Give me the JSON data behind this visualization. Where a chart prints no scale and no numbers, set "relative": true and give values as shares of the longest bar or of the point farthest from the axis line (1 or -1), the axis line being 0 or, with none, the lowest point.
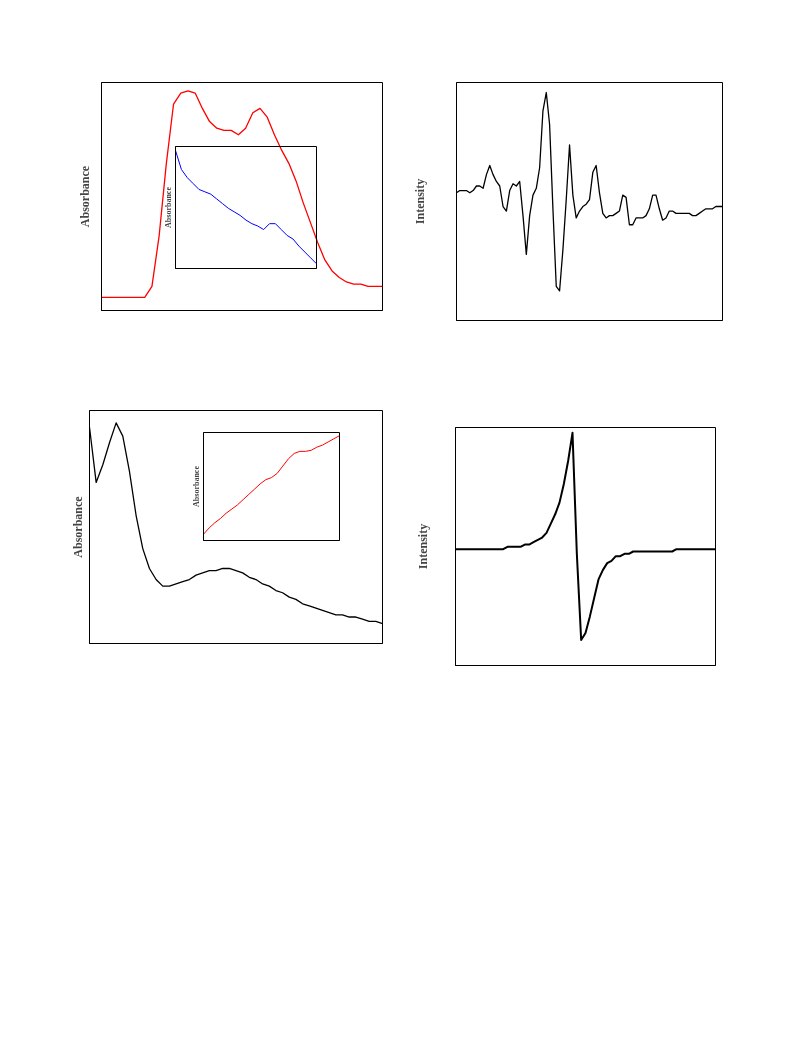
{
  "chart_data": [
    {
      "type": "line",
      "relative": true,
      "ylabel": "Absorbance",
      "categories": [
        null,
        null,
        null,
        null,
        null,
        null,
        null,
        null,
        null,
        null,
        null,
        null,
        null,
        null,
        null,
        null,
        null,
        null,
        null,
        null,
        null,
        null,
        null,
        null,
        null,
        null,
        null,
        null,
        null,
        null,
        null,
        null,
        null,
        null,
        null,
        null,
        null,
        null,
        null,
        null
      ],
      "series": [
        {
          "color": "#ff0000",
          "values": [
            0.06,
            0.06,
            0.06,
            0.06,
            0.06,
            0.06,
            0.06,
            0.11,
            0.34,
            0.67,
            0.94,
            0.99,
            1.0,
            0.99,
            0.92,
            0.86,
            0.83,
            0.82,
            0.82,
            0.8,
            0.83,
            0.9,
            0.92,
            0.88,
            0.8,
            0.73,
            0.67,
            0.59,
            0.49,
            0.4,
            0.31,
            0.23,
            0.18,
            0.15,
            0.13,
            0.12,
            0.12,
            0.11,
            0.11,
            0.11
          ]
        }
      ]
    },
    {
      "type": "line",
      "relative": true,
      "ylabel": "Absorbance",
      "categories": [
        null,
        null,
        null,
        null,
        null,
        null,
        null,
        null,
        null,
        null,
        null,
        null,
        null,
        null,
        null,
        null,
        null,
        null,
        null,
        null,
        null,
        null,
        null,
        null,
        null
      ],
      "series": [
        {
          "color": "#0000ff",
          "values": [
            1.0,
            0.84,
            0.77,
            0.72,
            0.67,
            0.65,
            0.63,
            0.59,
            0.55,
            0.51,
            0.48,
            0.45,
            0.41,
            0.38,
            0.36,
            0.33,
            0.38,
            0.38,
            0.33,
            0.28,
            0.25,
            0.19,
            0.14,
            0.09,
            0.04
          ]
        }
      ]
    },
    {
      "type": "line",
      "relative": true,
      "ylabel": "Intensity",
      "categories": [
        null,
        null,
        null,
        null,
        null,
        null,
        null,
        null,
        null,
        null,
        null,
        null,
        null,
        null,
        null,
        null,
        null,
        null,
        null,
        null,
        null,
        null,
        null,
        null,
        null,
        null,
        null,
        null,
        null,
        null,
        null,
        null,
        null,
        null,
        null,
        null,
        null,
        null,
        null,
        null,
        null,
        null,
        null,
        null,
        null,
        null,
        null,
        null,
        null,
        null,
        null,
        null,
        null,
        null,
        null,
        null,
        null,
        null,
        null,
        null,
        null,
        null,
        null,
        null,
        null,
        null,
        null,
        null,
        null,
        null,
        null,
        null,
        null,
        null,
        null,
        null,
        null,
        null,
        null,
        null,
        null
      ],
      "series": [
        {
          "color": "#000000",
          "values": [
            0.56,
            0.57,
            0.57,
            0.57,
            0.56,
            0.57,
            0.59,
            0.59,
            0.58,
            0.64,
            0.68,
            0.64,
            0.61,
            0.59,
            0.5,
            0.48,
            0.57,
            0.6,
            0.59,
            0.61,
            0.46,
            0.29,
            0.46,
            0.55,
            0.58,
            0.67,
            0.92,
            1.0,
            0.86,
            0.49,
            0.15,
            0.13,
            0.31,
            0.53,
            0.77,
            0.55,
            0.45,
            0.48,
            0.5,
            0.51,
            0.53,
            0.65,
            0.68,
            0.56,
            0.47,
            0.45,
            0.46,
            0.46,
            0.47,
            0.48,
            0.55,
            0.54,
            0.42,
            0.42,
            0.45,
            0.45,
            0.45,
            0.46,
            0.49,
            0.55,
            0.55,
            0.49,
            0.44,
            0.45,
            0.48,
            0.48,
            0.47,
            0.47,
            0.47,
            0.47,
            0.47,
            0.46,
            0.46,
            0.47,
            0.48,
            0.49,
            0.49,
            0.49,
            0.5,
            0.5,
            0.5
          ]
        }
      ]
    },
    {
      "type": "line",
      "relative": true,
      "ylabel": "Absorbance",
      "categories": [
        null,
        null,
        null,
        null,
        null,
        null,
        null,
        null,
        null,
        null,
        null,
        null,
        null,
        null,
        null,
        null,
        null,
        null,
        null,
        null,
        null,
        null,
        null,
        null,
        null,
        null,
        null,
        null,
        null,
        null,
        null,
        null,
        null,
        null,
        null,
        null,
        null,
        null,
        null,
        null,
        null,
        null,
        null,
        null,
        null
      ],
      "series": [
        {
          "color": "#000000",
          "values": [
            0.98,
            0.73,
            0.81,
            0.91,
            1.0,
            0.94,
            0.78,
            0.58,
            0.43,
            0.34,
            0.29,
            0.26,
            0.26,
            0.27,
            0.28,
            0.29,
            0.31,
            0.32,
            0.33,
            0.33,
            0.34,
            0.34,
            0.33,
            0.32,
            0.3,
            0.29,
            0.27,
            0.26,
            0.24,
            0.23,
            0.21,
            0.2,
            0.18,
            0.17,
            0.16,
            0.15,
            0.14,
            0.13,
            0.13,
            0.12,
            0.12,
            0.11,
            0.1,
            0.1,
            0.09
          ]
        }
      ]
    },
    {
      "type": "line",
      "relative": true,
      "ylabel": "Absorbance",
      "categories": [
        null,
        null,
        null,
        null,
        null,
        null,
        null,
        null,
        null,
        null,
        null,
        null,
        null,
        null,
        null,
        null,
        null,
        null,
        null,
        null,
        null,
        null,
        null,
        null,
        null
      ],
      "series": [
        {
          "color": "#ff0000",
          "values": [
            0.06,
            0.12,
            0.17,
            0.21,
            0.26,
            0.3,
            0.34,
            0.39,
            0.44,
            0.49,
            0.54,
            0.58,
            0.6,
            0.64,
            0.71,
            0.78,
            0.83,
            0.85,
            0.85,
            0.86,
            0.89,
            0.91,
            0.94,
            0.97,
            1.0
          ]
        }
      ]
    },
    {
      "type": "line",
      "relative": true,
      "ylabel": "Intensity",
      "categories": [
        null,
        null,
        null,
        null,
        null,
        null,
        null,
        null,
        null,
        null,
        null,
        null,
        null,
        null,
        null,
        null,
        null,
        null,
        null,
        null,
        null,
        null,
        null,
        null,
        null,
        null,
        null,
        null,
        null,
        null,
        null,
        null,
        null,
        null,
        null,
        null,
        null,
        null,
        null,
        null,
        null,
        null,
        null,
        null,
        null,
        null,
        null,
        null,
        null,
        null,
        null,
        null,
        null,
        null,
        null,
        null,
        null,
        null,
        null,
        null,
        null
      ],
      "series": [
        {
          "color": "#000000",
          "values": [
            0.5,
            0.5,
            0.5,
            0.5,
            0.5,
            0.5,
            0.5,
            0.5,
            0.5,
            0.5,
            0.5,
            0.5,
            0.51,
            0.51,
            0.51,
            0.51,
            0.52,
            0.52,
            0.53,
            0.54,
            0.55,
            0.57,
            0.61,
            0.65,
            0.7,
            0.78,
            0.88,
            1.0,
            0.48,
            0.11,
            0.14,
            0.21,
            0.29,
            0.37,
            0.41,
            0.44,
            0.45,
            0.47,
            0.47,
            0.48,
            0.48,
            0.49,
            0.49,
            0.49,
            0.49,
            0.49,
            0.49,
            0.49,
            0.49,
            0.49,
            0.49,
            0.5,
            0.5,
            0.5,
            0.5,
            0.5,
            0.5,
            0.5,
            0.5,
            0.5,
            0.5
          ]
        }
      ]
    }
  ]
}
